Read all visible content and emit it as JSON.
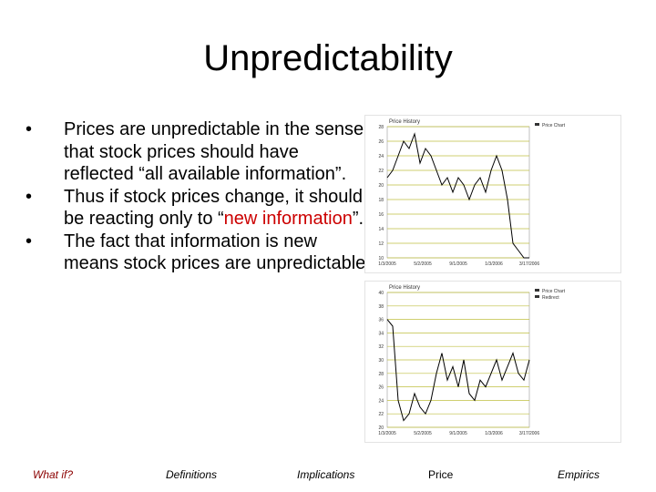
{
  "slide": {
    "title": "Unpredictability",
    "bullets": [
      {
        "text": "Prices are unpredictable in the sense that stock prices should have reflected “all available information”."
      },
      {
        "text_before": "Thus if stock prices change, it should be reacting only to “",
        "highlight": "new information",
        "text_after": "”."
      },
      {
        "text": "The fact that information is new means stock prices are unpredictable."
      }
    ],
    "bullet_symbol": "•",
    "highlight_color": "#cc0000"
  },
  "footer": {
    "items": [
      "What if?",
      "Definitions",
      "Implications",
      "Price",
      "Empirics"
    ],
    "active_color": "#8b0000"
  },
  "chart_data": [
    {
      "type": "line",
      "title": "Price History",
      "legend": [
        "Price Chart"
      ],
      "y_ticks": [
        "28",
        "26",
        "24",
        "22",
        "20",
        "18",
        "16",
        "14",
        "12",
        "10"
      ],
      "x_ticks": [
        "1/3/2005",
        "5/2/2005",
        "9/1/2005",
        "1/3/2006",
        "3/17/2006"
      ],
      "series": [
        {
          "values": [
            21,
            22,
            24,
            26,
            25,
            27,
            23,
            25,
            24,
            22,
            20,
            21,
            19,
            21,
            20,
            18,
            20,
            21,
            19,
            22,
            24,
            22,
            18,
            12,
            11,
            10,
            10
          ]
        }
      ],
      "grid": true,
      "line_color": "#000000",
      "grid_color": "#bfbf40"
    },
    {
      "type": "line",
      "title": "Price History",
      "legend": [
        "Price Chart",
        "Redirect"
      ],
      "y_ticks": [
        "40",
        "38",
        "36",
        "34",
        "32",
        "30",
        "28",
        "26",
        "24",
        "22",
        "20"
      ],
      "x_ticks": [
        "1/3/2005",
        "5/2/2005",
        "9/1/2005",
        "1/3/2006",
        "3/17/2006"
      ],
      "series": [
        {
          "values": [
            36,
            35,
            24,
            21,
            22,
            25,
            23,
            22,
            24,
            28,
            31,
            27,
            29,
            26,
            30,
            25,
            24,
            27,
            26,
            28,
            30,
            27,
            29,
            31,
            28,
            27,
            30
          ]
        }
      ],
      "grid": true,
      "line_color": "#000000",
      "grid_color": "#bfbf40"
    }
  ]
}
